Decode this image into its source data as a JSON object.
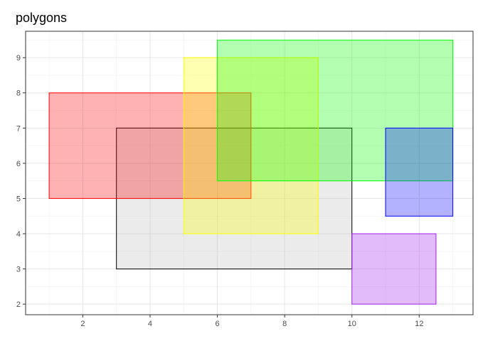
{
  "chart_data": {
    "type": "polygon",
    "title": "polygons",
    "xlabel": "",
    "ylabel": "",
    "xlim": [
      0.3,
      13.6
    ],
    "ylim": [
      1.7,
      9.75
    ],
    "x_ticks": [
      2,
      4,
      6,
      8,
      10,
      12
    ],
    "y_ticks": [
      2,
      3,
      4,
      5,
      6,
      7,
      8,
      9
    ],
    "grid": true,
    "legend": "none",
    "shapes": [
      {
        "fill": "#bebebe",
        "stroke": "#000000",
        "opacity": 0.3,
        "xmin": 3,
        "xmax": 10,
        "ymin": 3,
        "ymax": 7
      },
      {
        "fill": "#ff0000",
        "stroke": "#ff0000",
        "opacity": 0.3,
        "xmin": 1,
        "xmax": 7,
        "ymin": 5,
        "ymax": 8
      },
      {
        "fill": "#ffff00",
        "stroke": "#ffff00",
        "opacity": 0.3,
        "xmin": 5,
        "xmax": 9,
        "ymin": 4,
        "ymax": 9
      },
      {
        "fill": "#00ff00",
        "stroke": "#00ff00",
        "opacity": 0.3,
        "xmin": 6,
        "xmax": 13,
        "ymin": 5.5,
        "ymax": 9.5
      },
      {
        "fill": "#0000ff",
        "stroke": "#0000ff",
        "opacity": 0.3,
        "xmin": 11,
        "xmax": 13,
        "ymin": 4.5,
        "ymax": 7
      },
      {
        "fill": "#a020f0",
        "stroke": "#a020f0",
        "opacity": 0.3,
        "xmin": 10,
        "xmax": 12.5,
        "ymin": 2,
        "ymax": 4
      }
    ]
  }
}
